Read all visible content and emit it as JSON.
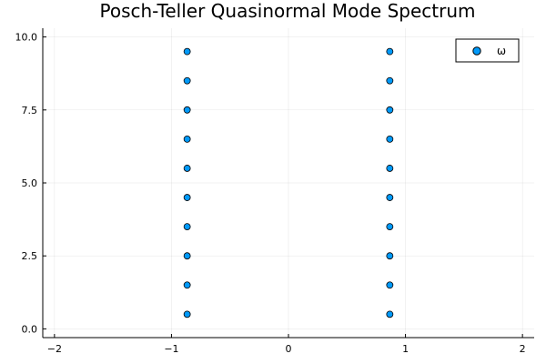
{
  "chart_data": {
    "type": "scatter",
    "title": "Posch-Teller Quasinormal Mode Spectrum",
    "xlabel": "",
    "ylabel": "",
    "xlim": [
      -2.1,
      2.1
    ],
    "ylim": [
      -0.3,
      10.3
    ],
    "xticks": [
      -2,
      -1,
      0,
      1,
      2
    ],
    "xtick_labels": [
      "−2",
      "−1",
      "0",
      "1",
      "2"
    ],
    "yticks": [
      0,
      2.5,
      5,
      7.5,
      10
    ],
    "ytick_labels": [
      "0.0",
      "2.5",
      "5.0",
      "7.5",
      "10.0"
    ],
    "grid": true,
    "legend_position": "top-right",
    "series": [
      {
        "name": "ω",
        "color": "#009AFA",
        "points": [
          {
            "x": -0.866,
            "y": 0.5
          },
          {
            "x": -0.866,
            "y": 1.5
          },
          {
            "x": -0.866,
            "y": 2.5
          },
          {
            "x": -0.866,
            "y": 3.5
          },
          {
            "x": -0.866,
            "y": 4.5
          },
          {
            "x": -0.866,
            "y": 5.5
          },
          {
            "x": -0.866,
            "y": 6.5
          },
          {
            "x": -0.866,
            "y": 7.5
          },
          {
            "x": -0.866,
            "y": 8.5
          },
          {
            "x": -0.866,
            "y": 9.5
          },
          {
            "x": 0.866,
            "y": 0.5
          },
          {
            "x": 0.866,
            "y": 1.5
          },
          {
            "x": 0.866,
            "y": 2.5
          },
          {
            "x": 0.866,
            "y": 3.5
          },
          {
            "x": 0.866,
            "y": 4.5
          },
          {
            "x": 0.866,
            "y": 5.5
          },
          {
            "x": 0.866,
            "y": 6.5
          },
          {
            "x": 0.866,
            "y": 7.5
          },
          {
            "x": 0.866,
            "y": 8.5
          },
          {
            "x": 0.866,
            "y": 9.5
          }
        ]
      }
    ]
  }
}
